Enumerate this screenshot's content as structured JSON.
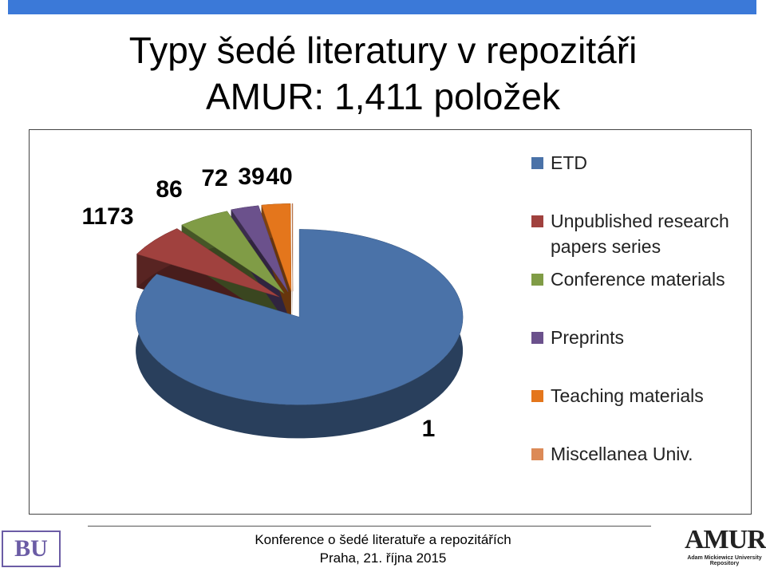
{
  "chart_data": {
    "type": "pie3d",
    "title": "Typy šedé literatury v repozitáři AMUR: 1,411 položek",
    "categories": [
      "ETD",
      "Unpublished research papers series",
      "Conference materials",
      "Preprints",
      "Teaching materials",
      "Miscellanea Univ."
    ],
    "values": [
      1173,
      86,
      72,
      39,
      40,
      1
    ],
    "colors": [
      "#4a72a8",
      "#a0413e",
      "#809c46",
      "#6b518c",
      "#e4761c",
      "#dc8a57"
    ],
    "legend": "right"
  },
  "footer": {
    "line1": "Konference o šedé literatuře a repozitářích",
    "line2": "Praha, 21. října 2015",
    "logo_left": "BU",
    "logo_right": "AMUR",
    "logo_right_sub": "Adam Mickiewicz University Repository"
  }
}
